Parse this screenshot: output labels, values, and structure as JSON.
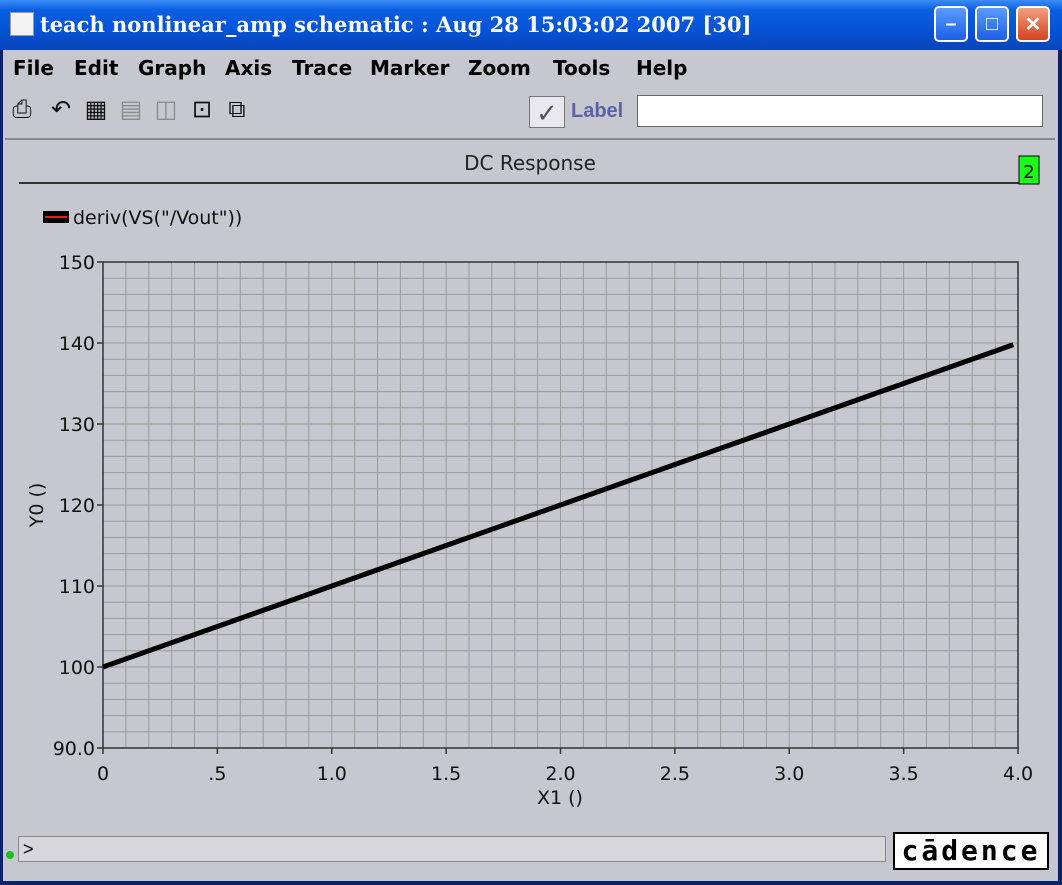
{
  "window": {
    "title": "teach nonlinear_amp schematic : Aug 28 15:03:02 2007 [30]",
    "minimize_icon": "minimize-icon",
    "maximize_icon": "maximize-icon",
    "close_icon": "close-icon"
  },
  "menu": {
    "items": [
      "File",
      "Edit",
      "Graph",
      "Axis",
      "Trace",
      "Marker",
      "Zoom",
      "Tools",
      "Help"
    ]
  },
  "toolbar": {
    "icons": [
      "print-icon",
      "undo-icon",
      "grid-icon",
      "strip-icon",
      "composite-icon",
      "fit-icon",
      "subwindow-icon"
    ],
    "label_checkbox": "checked",
    "label_text": "Label",
    "label_value": ""
  },
  "graph": {
    "header": "DC Response",
    "window_number": "2",
    "legend_color": "#000000"
  },
  "chart_data": {
    "type": "line",
    "title": "DC Response",
    "xlabel": "X1 ()",
    "ylabel": "Y0 ()",
    "xlim": [
      0,
      4.0
    ],
    "ylim": [
      90,
      150
    ],
    "xticks": [
      "0",
      ".5",
      "1.0",
      "1.5",
      "2.0",
      "2.5",
      "3.0",
      "3.5",
      "4.0"
    ],
    "yticks": [
      "90.0",
      "100",
      "110",
      "120",
      "130",
      "140",
      "150"
    ],
    "grid": true,
    "legend_position": "top-left",
    "series": [
      {
        "name": "deriv(VS(\"/Vout\"))",
        "color": "#000000",
        "x": [
          0,
          0.5,
          1.0,
          1.5,
          2.0,
          2.5,
          3.0,
          3.5,
          3.98
        ],
        "y": [
          100,
          105,
          110,
          115,
          120,
          125,
          130,
          135,
          139.8
        ]
      }
    ]
  },
  "status": {
    "prompt": ">",
    "brand": "cādence"
  }
}
